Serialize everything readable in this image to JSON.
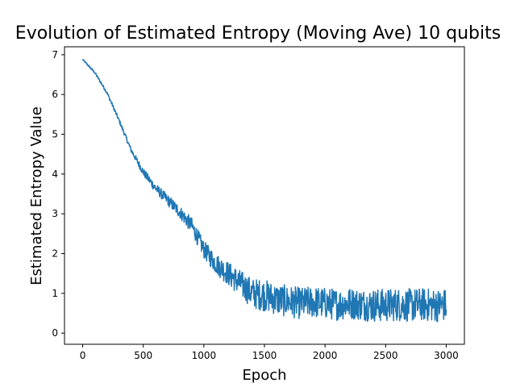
{
  "chart_data": {
    "type": "line",
    "title": "Evolution of Estimated Entropy (Moving Ave) 10 qubits",
    "xlabel": "Epoch",
    "ylabel": "Estimated Entropy Value",
    "xlim": [
      -150,
      3150
    ],
    "ylim": [
      -0.28,
      7.2
    ],
    "xticks": [
      0,
      500,
      1000,
      1500,
      2000,
      2500,
      3000
    ],
    "yticks": [
      0,
      1,
      2,
      3,
      4,
      5,
      6,
      7
    ],
    "grid": false,
    "series": [
      {
        "color": "#1f77b4",
        "x": [
          0,
          100,
          200,
          300,
          400,
          500,
          600,
          700,
          800,
          900,
          1000,
          1100,
          1200,
          1300,
          1400,
          1500,
          1600,
          1700,
          1800,
          1900,
          2000,
          2100,
          2200,
          2300,
          2400,
          2500,
          2600,
          2700,
          2800,
          2900,
          3000
        ],
        "y": [
          6.88,
          6.55,
          6.05,
          5.35,
          4.6,
          4.05,
          3.65,
          3.35,
          3.05,
          2.7,
          2.1,
          1.75,
          1.5,
          1.25,
          1.0,
          0.95,
          0.85,
          0.8,
          0.75,
          0.78,
          0.75,
          0.72,
          0.75,
          0.72,
          0.7,
          0.7,
          0.72,
          0.7,
          0.72,
          0.7,
          0.7
        ],
        "noise": [
          0.02,
          0.03,
          0.04,
          0.05,
          0.06,
          0.1,
          0.12,
          0.14,
          0.16,
          0.2,
          0.22,
          0.26,
          0.3,
          0.34,
          0.38,
          0.4,
          0.4,
          0.4,
          0.4,
          0.4,
          0.4,
          0.4,
          0.4,
          0.4,
          0.42,
          0.42,
          0.42,
          0.42,
          0.42,
          0.42,
          0.42
        ]
      }
    ]
  }
}
